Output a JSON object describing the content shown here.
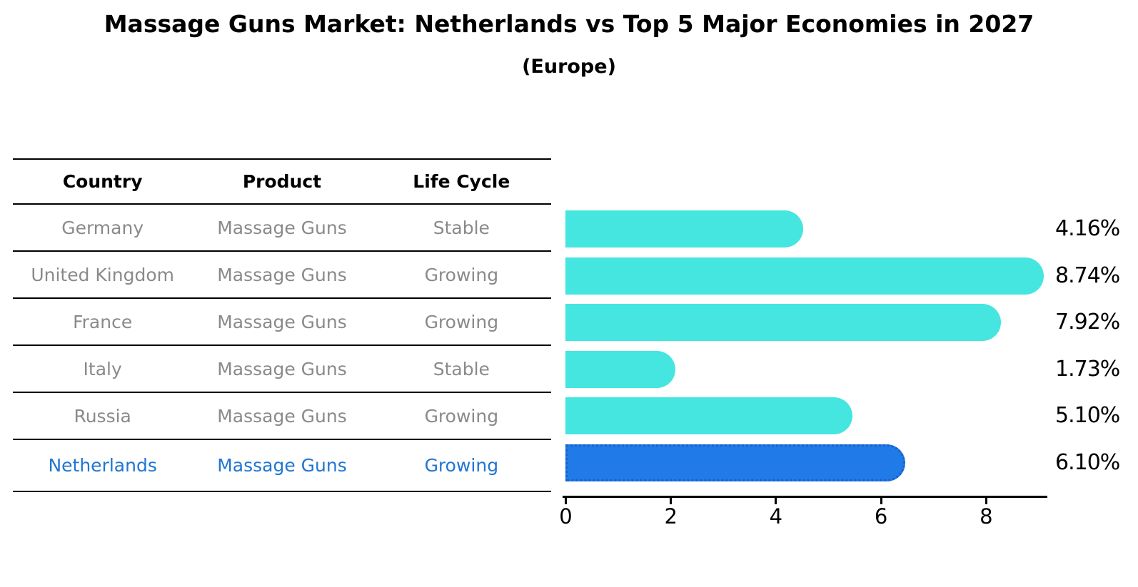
{
  "title": "Massage Guns Market: Netherlands vs Top 5 Major Economies in 2027",
  "subtitle": "(Europe)",
  "colors": {
    "bar_default": "#45e5e0",
    "bar_highlight": "#207ae8",
    "bar_highlight_border": "#1661cc",
    "highlight_text": "#2176d2",
    "table_text": "#8a8a8a",
    "axis_color": "#000000"
  },
  "table": {
    "headers": [
      "Country",
      "Product",
      "Life Cycle"
    ],
    "rows": [
      {
        "country": "Germany",
        "product": "Massage Guns",
        "life_cycle": "Stable",
        "highlight": false
      },
      {
        "country": "United Kingdom",
        "product": "Massage Guns",
        "life_cycle": "Growing",
        "highlight": false
      },
      {
        "country": "France",
        "product": "Massage Guns",
        "life_cycle": "Growing",
        "highlight": false
      },
      {
        "country": "Italy",
        "product": "Massage Guns",
        "life_cycle": "Stable",
        "highlight": false
      },
      {
        "country": "Russia",
        "product": "Massage Guns",
        "life_cycle": "Growing",
        "highlight": true
      }
    ],
    "highlight_row": {
      "country": "Netherlands",
      "product": "Massage Guns",
      "life_cycle": "Growing",
      "highlight": true
    }
  },
  "chart_data": {
    "type": "bar",
    "orientation": "horizontal",
    "title": "Massage Guns Market: Netherlands vs Top 5 Major Economies in 2027 (Europe)",
    "categories": [
      "Germany",
      "United Kingdom",
      "France",
      "Italy",
      "Russia",
      "Netherlands"
    ],
    "values": [
      4.16,
      8.74,
      7.92,
      1.73,
      5.1,
      6.1
    ],
    "labels": [
      "4.16%",
      "8.74%",
      "7.92%",
      "1.73%",
      "5.10%",
      "6.10%"
    ],
    "highlight_index": 5,
    "x_ticks": [
      0,
      2,
      4,
      6,
      8
    ],
    "xlim": [
      0,
      9.2
    ],
    "xlabel": "",
    "ylabel": "",
    "grid": false,
    "legend": false
  }
}
